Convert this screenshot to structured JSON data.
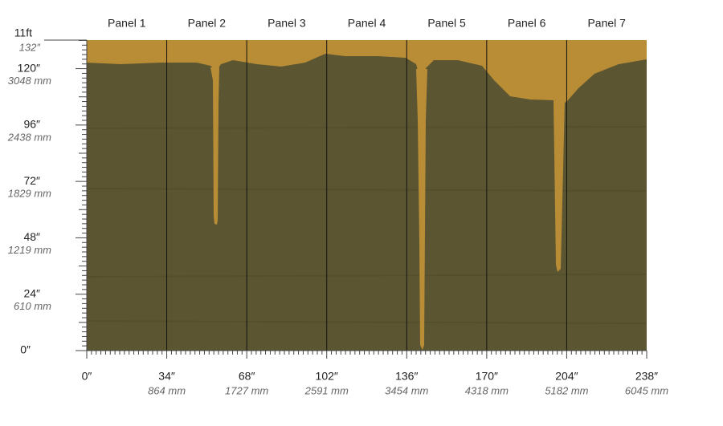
{
  "panels": [
    "Panel 1",
    "Panel 2",
    "Panel 3",
    "Panel 4",
    "Panel 5",
    "Panel 6",
    "Panel 7"
  ],
  "y_axis": {
    "top": "11ft",
    "top_inches": "132″",
    "marks": [
      {
        "inches": "120″",
        "mm": "3048 mm"
      },
      {
        "inches": "96″",
        "mm": "2438 mm"
      },
      {
        "inches": "72″",
        "mm": "1829 mm"
      },
      {
        "inches": "48″",
        "mm": "1219 mm"
      },
      {
        "inches": "24″",
        "mm": "610 mm"
      }
    ],
    "zero": "0″"
  },
  "x_axis": {
    "zero": "0″",
    "marks": [
      {
        "inches": "34″",
        "mm": "864 mm"
      },
      {
        "inches": "68″",
        "mm": "1727 mm"
      },
      {
        "inches": "102″",
        "mm": "2591 mm"
      },
      {
        "inches": "136″",
        "mm": "3454 mm"
      },
      {
        "inches": "170″",
        "mm": "4318 mm"
      },
      {
        "inches": "204″",
        "mm": "5182 mm"
      },
      {
        "inches": "238″",
        "mm": "6045 mm"
      }
    ]
  }
}
